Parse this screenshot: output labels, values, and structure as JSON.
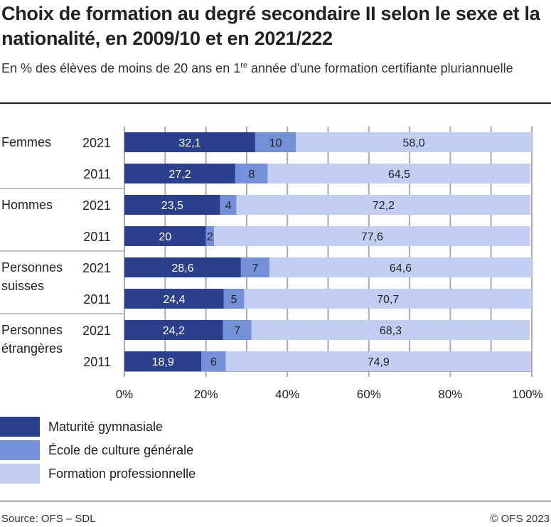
{
  "title": "Choix de formation au degré secondaire II selon le sexe et la nationalité, en 2009/10 et en 2021/222",
  "subtitle_pre": "En % des élèves de moins de 20 ans en 1",
  "subtitle_sup": "re",
  "subtitle_post": " année d'une formation certifiante pluriannuelle",
  "source": "Source: OFS – SDL",
  "copyright": "© OFS 2023",
  "chart_data": {
    "type": "bar",
    "orientation": "horizontal",
    "stacked": true,
    "groups": [
      "Femmes",
      "Hommes",
      "Personnes suisses",
      "Personnes étrangères"
    ],
    "categories": [
      "2021",
      "2011",
      "2021",
      "2011",
      "2021",
      "2011",
      "2021",
      "2011"
    ],
    "series": [
      {
        "name": "Maturité gymnasiale",
        "color": "#2b3f8c",
        "values": [
          32.1,
          27.2,
          23.5,
          20,
          28.6,
          24.4,
          24.2,
          18.9
        ],
        "labels": [
          "32,1",
          "27,2",
          "23,5",
          "20",
          "28,6",
          "24,4",
          "24,2",
          "18,9"
        ]
      },
      {
        "name": "École de culture générale",
        "color": "#7490d8",
        "values": [
          10,
          8,
          4,
          2,
          7,
          5,
          7,
          6
        ],
        "labels": [
          "10",
          "8",
          "4",
          "2",
          "7",
          "5",
          "7",
          "6"
        ]
      },
      {
        "name": "Formation professionnelle",
        "color": "#c3cff2",
        "values": [
          58.0,
          64.5,
          72.2,
          77.6,
          64.6,
          70.7,
          68.3,
          74.9
        ],
        "labels": [
          "58,0",
          "64,5",
          "72,2",
          "77,6",
          "64,6",
          "70,7",
          "68,3",
          "74,9"
        ]
      }
    ],
    "xlim": [
      0,
      100
    ],
    "xticks": [
      "0%",
      "20%",
      "40%",
      "60%",
      "80%",
      "100%"
    ],
    "grid": true,
    "legend": "bottom-left"
  }
}
